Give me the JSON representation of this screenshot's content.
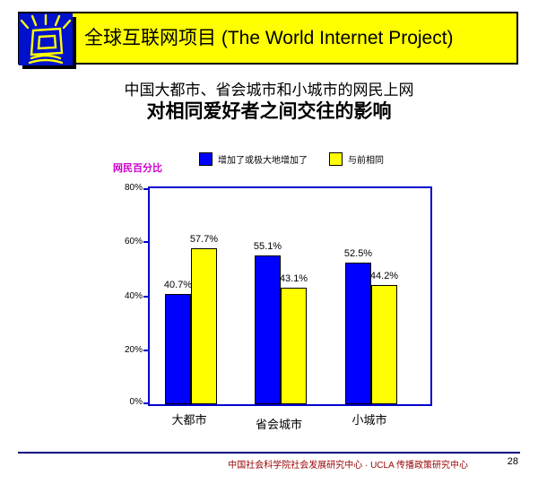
{
  "header": {
    "title": "全球互联网项目 (The World Internet Project)",
    "logo_icon": "shining-monitor-icon"
  },
  "slide_title": {
    "line1": "中国大都市、省会城市和小城市的网民上网",
    "line2": "对相同爱好者之间交往的影响"
  },
  "chart_data": {
    "type": "bar",
    "title": "",
    "xlabel": "",
    "ylabel": "网民百分比",
    "ylim": [
      0,
      80
    ],
    "yticks": [
      0,
      20,
      40,
      60,
      80
    ],
    "ytick_labels": [
      "0%",
      "20%",
      "40%",
      "60%",
      "80%"
    ],
    "grid": false,
    "legend_position": "top",
    "categories": [
      "大都市",
      "省会城市",
      "小城市"
    ],
    "series": [
      {
        "name": "增加了或极大地增加了",
        "color": "#0000FF",
        "values": [
          40.7,
          55.1,
          52.5
        ],
        "data_labels": [
          "40.7%",
          "55.1%",
          "52.5%"
        ]
      },
      {
        "name": "与前相同",
        "color": "#FFFF00",
        "values": [
          57.7,
          43.1,
          44.2
        ],
        "data_labels": [
          "57.7%",
          "43.1%",
          "44.2%"
        ]
      }
    ]
  },
  "footer": {
    "text": "中国社会科学院社会发展研究中心 · UCLA 传播政策研究中心",
    "page_number": "28"
  },
  "colors": {
    "banner_bg": "#FFFF00",
    "logo_bg": "#0011CC",
    "axis_blue": "#0000CC",
    "ylabel_magenta": "#CC00CC",
    "footer_line_navy": "#000080",
    "footer_text_red": "#990000"
  }
}
